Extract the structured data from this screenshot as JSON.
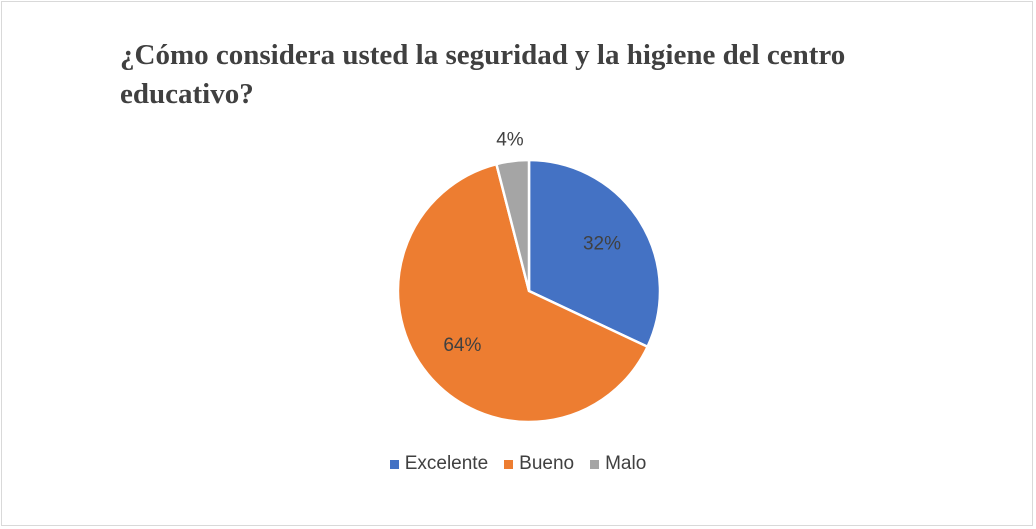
{
  "chart_data": {
    "type": "pie",
    "title": "¿Cómo considera usted la seguridad y la higiene del centro educativo?",
    "categories": [
      "Excelente",
      "Bueno",
      "Malo"
    ],
    "values": [
      32,
      64,
      4
    ],
    "value_labels": [
      "32%",
      "64%",
      "4%"
    ],
    "colors": [
      "#4472c4",
      "#ed7d31",
      "#a5a5a5"
    ],
    "legend": "bottom"
  }
}
